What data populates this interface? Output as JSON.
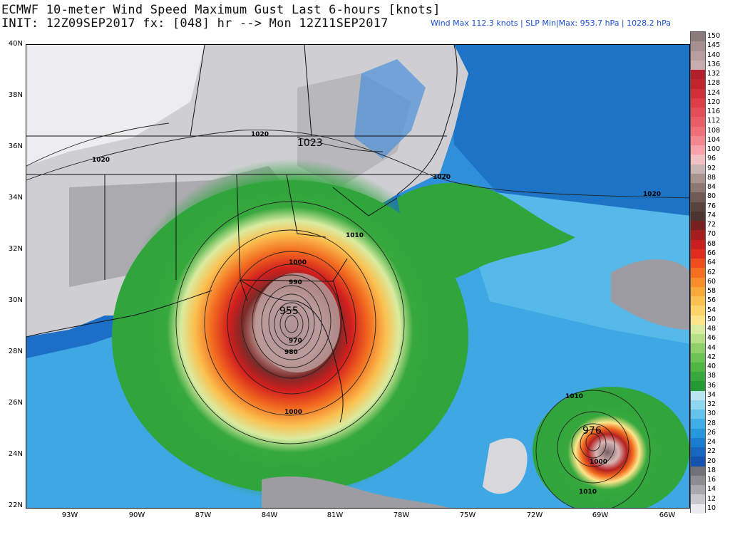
{
  "header": {
    "line1": "ECMWF 10-meter Wind Speed Maximum Gust Last 6-hours [knots]",
    "line2": "INIT: 12Z09SEP2017 fx: [048] hr --> Mon 12Z11SEP2017",
    "stats": "Wind Max 112.3 knots | SLP Min|Max: 953.7 hPa | 1028.2 hPa"
  },
  "map": {
    "lat_labels": [
      "40N",
      "38N",
      "36N",
      "34N",
      "32N",
      "30N",
      "28N",
      "26N",
      "24N",
      "22N"
    ],
    "lon_labels": [
      "93W",
      "90W",
      "87W",
      "84W",
      "81W",
      "78W",
      "75W",
      "72W",
      "69W",
      "66W"
    ],
    "isobar_labels": [
      "1020",
      "1023",
      "1020",
      "1020",
      "1020",
      "1010",
      "1000",
      "990",
      "955",
      "970",
      "980",
      "1000",
      "1010",
      "976",
      "1000",
      "1010"
    ],
    "storms": [
      {
        "name_visible": "",
        "center_pressure_label": "955"
      },
      {
        "name_visible": "",
        "center_pressure_label": "976"
      }
    ]
  },
  "colorbar": {
    "labels": [
      "150",
      "145",
      "140",
      "136",
      "132",
      "128",
      "124",
      "120",
      "116",
      "112",
      "108",
      "104",
      "100",
      "96",
      "92",
      "88",
      "84",
      "80",
      "76",
      "74",
      "72",
      "70",
      "68",
      "66",
      "64",
      "62",
      "60",
      "58",
      "56",
      "54",
      "50",
      "48",
      "46",
      "44",
      "42",
      "40",
      "38",
      "36",
      "34",
      "32",
      "30",
      "28",
      "26",
      "24",
      "22",
      "20",
      "18",
      "16",
      "14",
      "12",
      "10"
    ],
    "colors": [
      "#8c7b7b",
      "#a58f8f",
      "#b89e9e",
      "#c7adad",
      "#b0202a",
      "#c2242e",
      "#d1303a",
      "#dd3e48",
      "#e34d57",
      "#e95d66",
      "#ef7079",
      "#f38790",
      "#f7a1a8",
      "#f3c1c4",
      "#c8b4b2",
      "#a8938f",
      "#8d7873",
      "#6f5a55",
      "#58433e",
      "#4c3530",
      "#7a1f1f",
      "#a51e1e",
      "#c81f1f",
      "#e02c1c",
      "#ef4d1b",
      "#f56f20",
      "#f88e2a",
      "#f9a93a",
      "#fbc04f",
      "#fcd46a",
      "#fde68a",
      "#d9eba0",
      "#b6df86",
      "#8fd06a",
      "#6cc355",
      "#4fb545",
      "#37a83d",
      "#249a34",
      "#b9e6f2",
      "#8fd6f0",
      "#63c3ec",
      "#3faee6",
      "#2697dc",
      "#1b7dd0",
      "#1766c2",
      "#1452b0",
      "#71717a",
      "#8c8c92",
      "#a8a8ad",
      "#c7c7cb",
      "#ebebee"
    ]
  }
}
